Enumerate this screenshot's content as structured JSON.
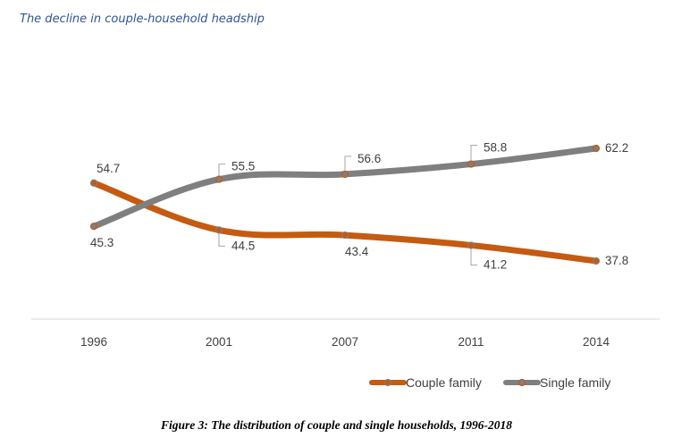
{
  "header": {
    "title": "The decline in couple-household headship"
  },
  "caption": "Figure 3: The distribution of couple and single households, 1996-2018",
  "colors": {
    "couple": "#c55a11",
    "single": "#7f7f7f",
    "axis": "#d9d9d9",
    "text": "#404040",
    "title": "#2f5597"
  },
  "chart_data": {
    "type": "line",
    "title": "",
    "xlabel": "",
    "ylabel": "",
    "categories": [
      "1996",
      "2001",
      "2007",
      "2011",
      "2014"
    ],
    "ylim": [
      30,
      70
    ],
    "grid": false,
    "legend": "bottom-right",
    "series": [
      {
        "name": "Couple family",
        "values": [
          54.7,
          44.5,
          43.4,
          41.2,
          37.8
        ],
        "labels": [
          "54.7",
          "44.5",
          "43.4",
          "41.2",
          "37.8"
        ]
      },
      {
        "name": "Single family",
        "values": [
          45.3,
          55.5,
          56.6,
          58.8,
          62.2
        ],
        "labels": [
          "45.3",
          "55.5",
          "56.6",
          "58.8",
          "62.2"
        ]
      }
    ]
  }
}
